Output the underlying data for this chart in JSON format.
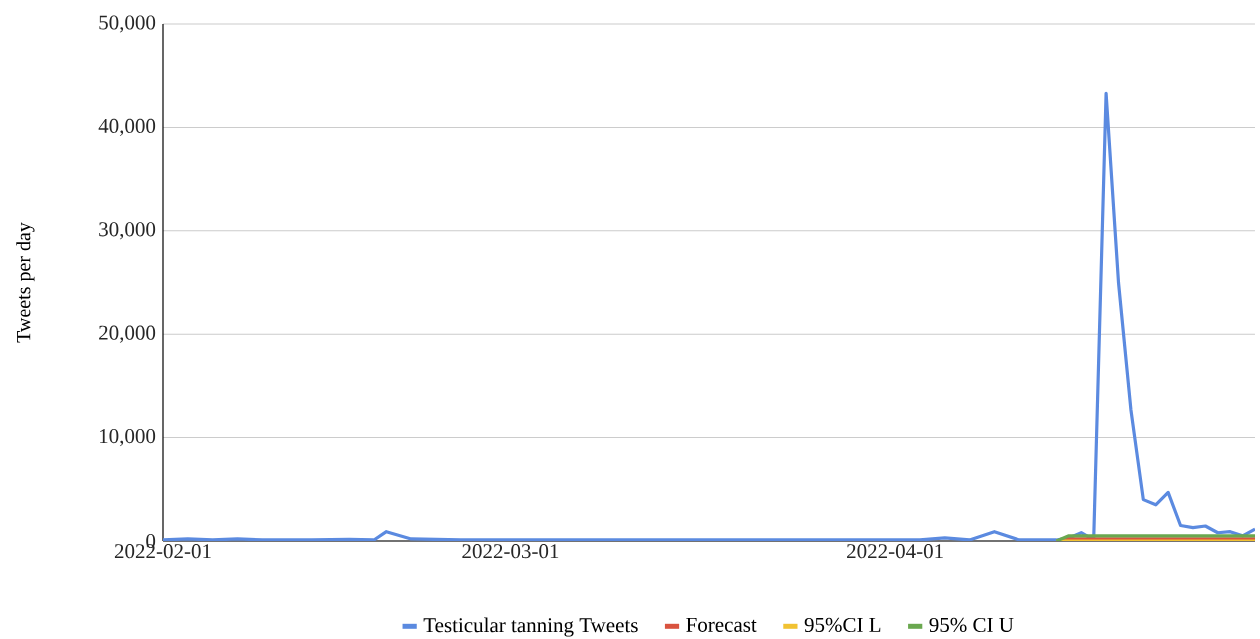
{
  "chart_data": {
    "type": "line",
    "ylabel": "Tweets per day",
    "xlim": [
      "2022-02-01",
      "2022-04-30"
    ],
    "xticks": [
      "2022-02-01",
      "2022-03-01",
      "2022-04-01"
    ],
    "ylim": [
      0,
      50000
    ],
    "yticks": [
      {
        "value": 0,
        "label": "0"
      },
      {
        "value": 10000,
        "label": "10,000"
      },
      {
        "value": 20000,
        "label": "20,000"
      },
      {
        "value": 30000,
        "label": "30,000"
      },
      {
        "value": 40000,
        "label": "40,000"
      },
      {
        "value": 50000,
        "label": "50,000"
      }
    ],
    "grid": "y",
    "legend": "bottom",
    "marker": "none",
    "line_style": "solid",
    "series": [
      {
        "name": "Testicular tanning Tweets",
        "color": "#5b8ae0",
        "x": [
          "2022-02-01",
          "2022-02-03",
          "2022-02-05",
          "2022-02-07",
          "2022-02-09",
          "2022-02-13",
          "2022-02-16",
          "2022-02-18",
          "2022-02-19",
          "2022-02-21",
          "2022-02-23",
          "2022-02-25",
          "2022-03-05",
          "2022-03-15",
          "2022-03-25",
          "2022-04-03",
          "2022-04-05",
          "2022-04-07",
          "2022-04-09",
          "2022-04-11",
          "2022-04-14",
          "2022-04-15",
          "2022-04-16",
          "2022-04-17",
          "2022-04-18",
          "2022-04-19",
          "2022-04-20",
          "2022-04-21",
          "2022-04-22",
          "2022-04-23",
          "2022-04-24",
          "2022-04-25",
          "2022-04-26",
          "2022-04-27",
          "2022-04-28",
          "2022-04-29",
          "2022-04-30"
        ],
        "values": [
          100,
          200,
          100,
          200,
          100,
          100,
          150,
          100,
          900,
          200,
          150,
          100,
          100,
          100,
          100,
          100,
          300,
          100,
          900,
          100,
          100,
          300,
          800,
          100,
          43300,
          25000,
          12700,
          4000,
          3500,
          4700,
          1500,
          1300,
          1450,
          800,
          900,
          500,
          1150
        ]
      },
      {
        "name": "Forecast",
        "color": "#d9533f",
        "x": [
          "2022-04-14",
          "2022-04-15",
          "2022-04-30"
        ],
        "values": [
          0,
          200,
          200
        ]
      },
      {
        "name": "95%CI L",
        "color": "#f1c232",
        "x": [
          "2022-04-14",
          "2022-04-15",
          "2022-04-30"
        ],
        "values": [
          0,
          0,
          0
        ]
      },
      {
        "name": "95% CI U",
        "color": "#6aa84f",
        "x": [
          "2022-04-14",
          "2022-04-15",
          "2022-04-30"
        ],
        "values": [
          0,
          500,
          500
        ]
      }
    ]
  }
}
